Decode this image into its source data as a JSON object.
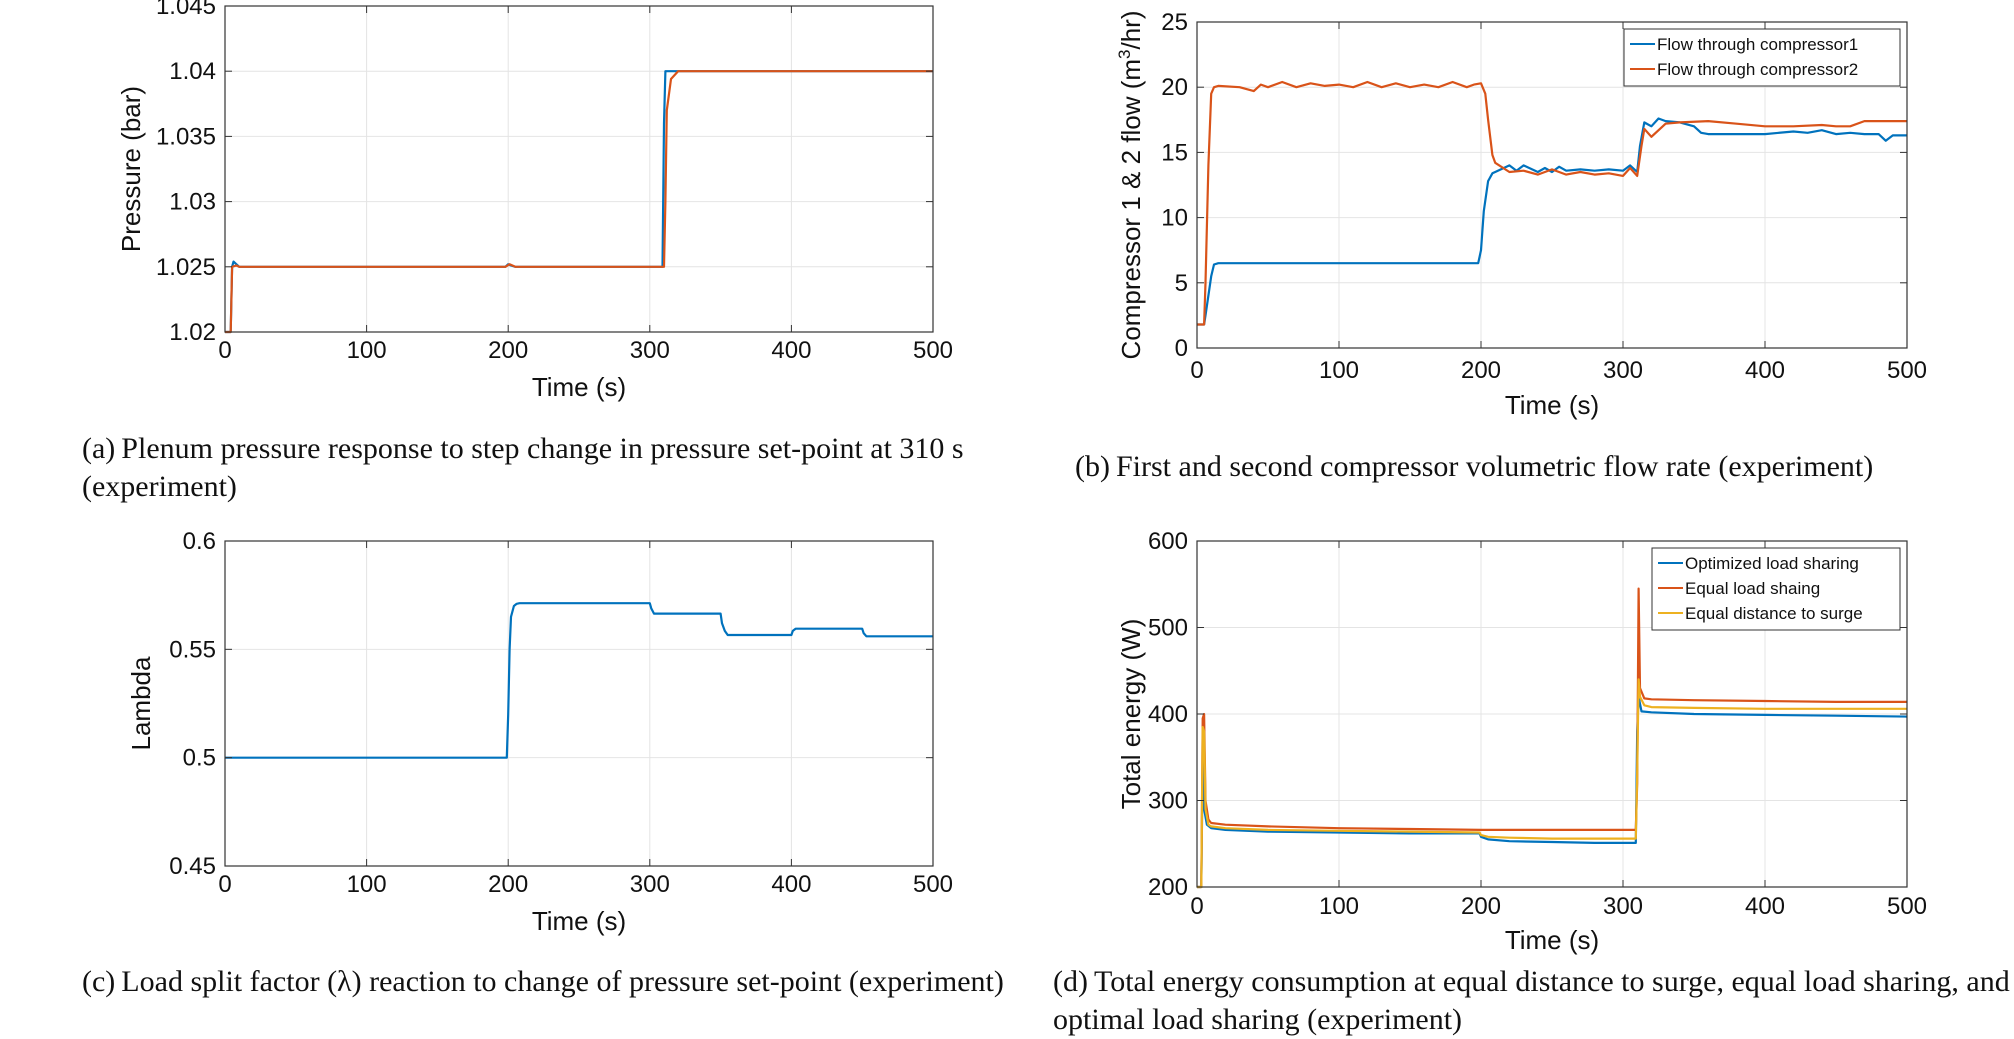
{
  "chart_data": [
    {
      "id": "a",
      "type": "line",
      "caption_letter": "(a)",
      "caption": "Plenum pressure response to step change in pressure set-point at 310 s (experiment)",
      "xlabel": "Time (s)",
      "ylabel": "Pressure (bar)",
      "xlim": [
        0,
        500
      ],
      "ylim": [
        1.02,
        1.045
      ],
      "xticks": [
        0,
        100,
        200,
        300,
        400,
        500
      ],
      "xtick_labels": [
        "0",
        "100",
        "200",
        "300",
        "400",
        "500"
      ],
      "yticks": [
        1.02,
        1.025,
        1.03,
        1.035,
        1.04,
        1.045
      ],
      "ytick_labels": [
        "1.02",
        "1.025",
        "1.03",
        "1.035",
        "1.04",
        "1.045"
      ],
      "grid": true,
      "legend": null,
      "colors": [
        "#0072BD",
        "#D95319"
      ],
      "series": [
        {
          "x": [
            0,
            4,
            5,
            6,
            8,
            10,
            100,
            198,
            200,
            202,
            205,
            305,
            309,
            310,
            311,
            313,
            500
          ],
          "y": [
            1.02,
            1.02,
            1.025,
            1.0254,
            1.0252,
            1.025,
            1.025,
            1.025,
            1.0252,
            1.0251,
            1.025,
            1.025,
            1.025,
            1.036,
            1.04,
            1.04,
            1.04
          ]
        },
        {
          "x": [
            0,
            4,
            5,
            8,
            10,
            100,
            198,
            201,
            205,
            305,
            310,
            311,
            312,
            315,
            320,
            500
          ],
          "y": [
            1.02,
            1.02,
            1.025,
            1.0251,
            1.025,
            1.025,
            1.025,
            1.0252,
            1.025,
            1.025,
            1.025,
            1.03,
            1.037,
            1.0394,
            1.04,
            1.04
          ]
        }
      ]
    },
    {
      "id": "b",
      "type": "line",
      "caption_letter": "(b)",
      "caption": "First and second compressor volumetric flow rate (experiment)",
      "xlabel": "Time (s)",
      "ylabel_main": "Compressor 1 & 2 flow (m",
      "ylabel_sup": "3",
      "ylabel_end": "/hr)",
      "xlim": [
        0,
        500
      ],
      "ylim": [
        0,
        25
      ],
      "xticks": [
        0,
        100,
        200,
        300,
        400,
        500
      ],
      "xtick_labels": [
        "0",
        "100",
        "200",
        "300",
        "400",
        "500"
      ],
      "yticks": [
        0,
        5,
        10,
        15,
        20,
        25
      ],
      "ytick_labels": [
        "0",
        "5",
        "10",
        "15",
        "20",
        "25"
      ],
      "grid": true,
      "legend_position": "top-right",
      "colors": [
        "#0072BD",
        "#D95319"
      ],
      "series": [
        {
          "name": "Flow through compressor1",
          "x": [
            0,
            5,
            6,
            10,
            12,
            15,
            100,
            198,
            200,
            202,
            205,
            208,
            210,
            220,
            225,
            230,
            240,
            245,
            250,
            255,
            260,
            270,
            280,
            290,
            300,
            305,
            310,
            312,
            315,
            320,
            325,
            330,
            340,
            350,
            355,
            360,
            380,
            400,
            420,
            430,
            440,
            450,
            460,
            470,
            480,
            485,
            490,
            500
          ],
          "y": [
            1.8,
            1.8,
            2.5,
            5.5,
            6.4,
            6.5,
            6.5,
            6.5,
            7.5,
            10.5,
            12.8,
            13.4,
            13.5,
            14.0,
            13.6,
            14.0,
            13.5,
            13.8,
            13.5,
            13.9,
            13.6,
            13.7,
            13.6,
            13.7,
            13.6,
            14.0,
            13.5,
            15.5,
            17.3,
            17.0,
            17.6,
            17.4,
            17.3,
            17.0,
            16.5,
            16.4,
            16.4,
            16.4,
            16.6,
            16.5,
            16.7,
            16.4,
            16.5,
            16.4,
            16.4,
            15.9,
            16.3,
            16.3
          ]
        },
        {
          "name": "Flow through compressor2",
          "x": [
            0,
            5,
            6,
            8,
            10,
            12,
            15,
            30,
            40,
            45,
            50,
            60,
            70,
            80,
            90,
            100,
            110,
            120,
            130,
            140,
            150,
            160,
            170,
            180,
            190,
            195,
            200,
            203,
            205,
            208,
            210,
            220,
            230,
            240,
            250,
            260,
            270,
            280,
            290,
            300,
            305,
            310,
            313,
            315,
            320,
            330,
            340,
            360,
            380,
            400,
            420,
            440,
            450,
            460,
            470,
            480,
            500
          ],
          "y": [
            1.8,
            1.8,
            5.0,
            14.0,
            19.5,
            20.0,
            20.1,
            20.0,
            19.7,
            20.2,
            20.0,
            20.4,
            20.0,
            20.3,
            20.1,
            20.2,
            20.0,
            20.4,
            20.0,
            20.3,
            20.0,
            20.2,
            20.0,
            20.4,
            20.0,
            20.2,
            20.3,
            19.5,
            17.5,
            14.8,
            14.2,
            13.5,
            13.6,
            13.3,
            13.7,
            13.3,
            13.5,
            13.3,
            13.4,
            13.2,
            13.8,
            13.2,
            15.5,
            16.8,
            16.2,
            17.2,
            17.3,
            17.4,
            17.2,
            17.0,
            17.0,
            17.1,
            17.0,
            17.0,
            17.4,
            17.4,
            17.4
          ]
        }
      ]
    },
    {
      "id": "c",
      "type": "line",
      "caption_letter": "(c)",
      "caption": "Load split factor (λ) reaction to change of pressure set-point (experiment)",
      "xlabel": "Time (s)",
      "ylabel": "Lambda",
      "xlim": [
        0,
        500
      ],
      "ylim": [
        0.45,
        0.6
      ],
      "xticks": [
        0,
        100,
        200,
        300,
        400,
        500
      ],
      "xtick_labels": [
        "0",
        "100",
        "200",
        "300",
        "400",
        "500"
      ],
      "yticks": [
        0.45,
        0.5,
        0.55,
        0.6
      ],
      "ytick_labels": [
        "0.45",
        "0.5",
        "0.55",
        "0.6"
      ],
      "grid": true,
      "legend": null,
      "colors": [
        "#0072BD"
      ],
      "series": [
        {
          "x": [
            0,
            199,
            200,
            201,
            202,
            204,
            206,
            208,
            210,
            300,
            301,
            303,
            350,
            351,
            353,
            355,
            400,
            401,
            403,
            450,
            451,
            453,
            455,
            500
          ],
          "y": [
            0.5,
            0.5,
            0.52,
            0.55,
            0.565,
            0.57,
            0.571,
            0.5713,
            0.5713,
            0.5713,
            0.569,
            0.5665,
            0.5665,
            0.562,
            0.5585,
            0.5566,
            0.5566,
            0.5585,
            0.5595,
            0.5595,
            0.5575,
            0.556,
            0.556,
            0.556
          ]
        }
      ]
    },
    {
      "id": "d",
      "type": "line",
      "caption_letter": "(d)",
      "caption": "Total energy consumption at equal distance to surge, equal load sharing, and optimal load sharing (experiment)",
      "xlabel": "Time (s)",
      "ylabel": "Total energy (W)",
      "xlim": [
        0,
        500
      ],
      "ylim": [
        200,
        600
      ],
      "xticks": [
        0,
        100,
        200,
        300,
        400,
        500
      ],
      "xtick_labels": [
        "0",
        "100",
        "200",
        "300",
        "400",
        "500"
      ],
      "yticks": [
        200,
        300,
        400,
        500,
        600
      ],
      "ytick_labels": [
        "200",
        "300",
        "400",
        "500",
        "600"
      ],
      "grid": true,
      "legend_position": "top-right",
      "colors": [
        "#0072BD",
        "#D95319",
        "#EDB120"
      ],
      "series": [
        {
          "name": "Optimized load sharing",
          "x": [
            0,
            3,
            4,
            5,
            7,
            10,
            20,
            50,
            100,
            150,
            199,
            200,
            205,
            220,
            250,
            280,
            305,
            309,
            310,
            311,
            313,
            320,
            350,
            400,
            450,
            500
          ],
          "y": [
            200,
            200,
            350,
            290,
            272,
            268,
            266,
            264,
            263,
            262,
            262,
            258,
            255,
            253,
            252,
            251,
            251,
            251,
            380,
            420,
            403,
            402,
            400,
            399,
            398,
            397
          ]
        },
        {
          "name": "Equal load shaing",
          "x": [
            0,
            3,
            4,
            5,
            6,
            8,
            10,
            20,
            50,
            100,
            150,
            200,
            250,
            300,
            309,
            310,
            311,
            312,
            315,
            320,
            350,
            400,
            450,
            500
          ],
          "y": [
            200,
            200,
            395,
            400,
            300,
            278,
            274,
            272,
            270,
            268,
            267,
            266,
            266,
            266,
            266,
            320,
            545,
            430,
            418,
            417,
            416,
            415,
            414,
            414
          ]
        },
        {
          "name": "Equal distance to surge",
          "x": [
            0,
            3,
            4,
            5,
            6,
            8,
            10,
            20,
            50,
            100,
            150,
            199,
            200,
            205,
            220,
            250,
            280,
            305,
            309,
            310,
            311,
            312,
            315,
            320,
            350,
            400,
            450,
            500
          ],
          "y": [
            200,
            200,
            385,
            380,
            290,
            272,
            270,
            268,
            266,
            265,
            264,
            263,
            260,
            258,
            257,
            256,
            256,
            256,
            256,
            330,
            440,
            420,
            410,
            408,
            407,
            406,
            406,
            406
          ]
        }
      ]
    }
  ]
}
